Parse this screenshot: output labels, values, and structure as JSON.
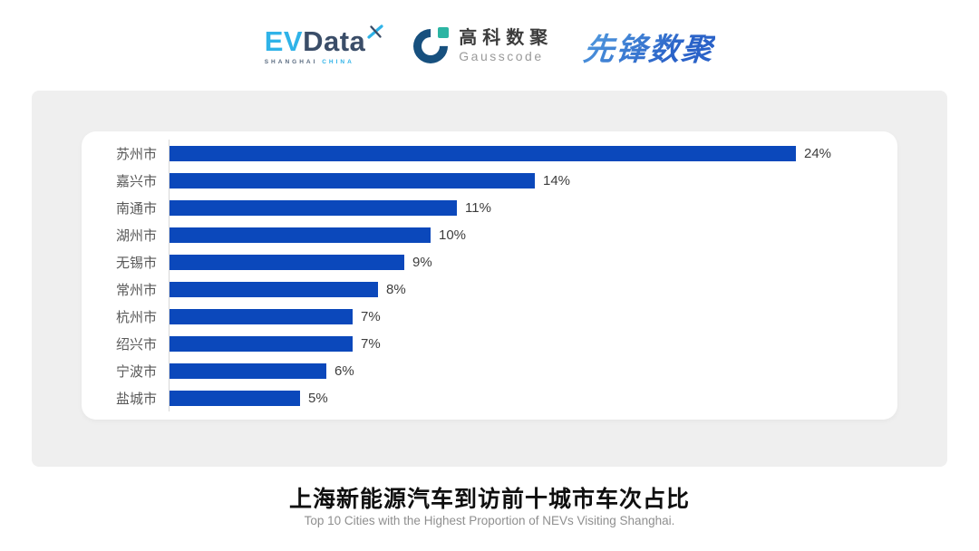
{
  "header": {
    "logos": {
      "evdata": {
        "ev": "EV",
        "data": "Data",
        "tagline_left": "SHANGHAI",
        "tagline_right": "CHINA",
        "ev_color": "#2fb3e8",
        "data_color": "#3a4d68"
      },
      "gausscode": {
        "name_cn": "高科数聚",
        "name_en": "Gausscode",
        "mark_colors": {
          "ring": "#17507e",
          "square": "#2cb5a3"
        }
      },
      "pioneer": {
        "text": "先锋数聚",
        "color": "#2f6fd0"
      }
    }
  },
  "chart_data": {
    "type": "bar",
    "orientation": "horizontal",
    "title": "上海新能源汽车到访前十城市车次占比",
    "subtitle": "Top 10 Cities with the Highest Proportion of  NEVs Visiting Shanghai.",
    "categories": [
      "苏州市",
      "嘉兴市",
      "南通市",
      "湖州市",
      "无锡市",
      "常州市",
      "杭州市",
      "绍兴市",
      "宁波市",
      "盐城市"
    ],
    "values": [
      24,
      14,
      11,
      10,
      9,
      8,
      7,
      7,
      6,
      5
    ],
    "value_labels": [
      "24%",
      "14%",
      "11%",
      "10%",
      "9%",
      "8%",
      "7%",
      "7%",
      "6%",
      "5%"
    ],
    "unit": "%",
    "xlim": [
      0,
      25
    ],
    "grid": false,
    "legend": null,
    "bar_color": "#0b48bb",
    "label_color": "#595959",
    "value_label_color": "#3d3d3d"
  }
}
